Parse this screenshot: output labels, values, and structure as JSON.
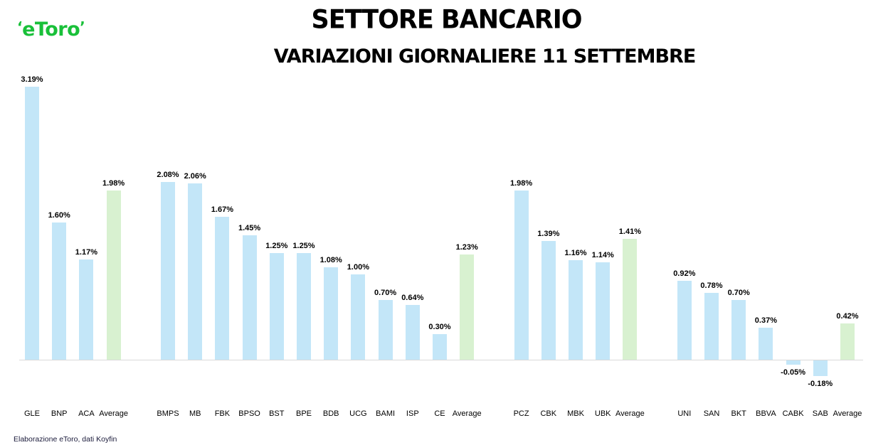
{
  "header": {
    "logo_text": "eToro",
    "title": "SETTORE BANCARIO",
    "subtitle": "VARIAZIONI GIORNALIERE 11 SETTEMBRE"
  },
  "footer": {
    "source": "Elaborazione eToro, dati Koyfin"
  },
  "colors": {
    "bank_bar": "#c3e6f8",
    "average_bar": "#d8f1d0",
    "baseline": "#d9d9d9",
    "logo": "#19c039"
  },
  "chart_data": {
    "type": "bar",
    "title": "SETTORE BANCARIO",
    "subtitle": "VARIAZIONI GIORNALIERE 11 SETTEMBRE",
    "xlabel": "",
    "ylabel": "",
    "grid": false,
    "legend": null,
    "unit": "%",
    "groups": [
      {
        "categories": [
          "GLE",
          "BNP",
          "ACA",
          "Average"
        ],
        "values": [
          3.19,
          1.6,
          1.17,
          1.98
        ]
      },
      {
        "categories": [
          "BMPS",
          "MB",
          "FBK",
          "BPSO",
          "BST",
          "BPE",
          "BDB",
          "UCG",
          "BAMI",
          "ISP",
          "CE",
          "Average"
        ],
        "values": [
          2.08,
          2.06,
          1.67,
          1.45,
          1.25,
          1.25,
          1.08,
          1.0,
          0.7,
          0.64,
          0.3,
          1.23
        ]
      },
      {
        "categories": [
          "PCZ",
          "CBK",
          "MBK",
          "UBK",
          "Average"
        ],
        "values": [
          1.98,
          1.39,
          1.16,
          1.14,
          1.41
        ]
      },
      {
        "categories": [
          "UNI",
          "SAN",
          "BKT",
          "BBVA",
          "CABK",
          "SAB",
          "Average"
        ],
        "values": [
          0.92,
          0.78,
          0.7,
          0.37,
          -0.05,
          -0.18,
          0.42
        ]
      }
    ],
    "categories": [
      "GLE",
      "BNP",
      "ACA",
      "Average",
      "BMPS",
      "MB",
      "FBK",
      "BPSO",
      "BST",
      "BPE",
      "BDB",
      "UCG",
      "BAMI",
      "ISP",
      "CE",
      "Average",
      "PCZ",
      "CBK",
      "MBK",
      "UBK",
      "Average",
      "UNI",
      "SAN",
      "BKT",
      "BBVA",
      "CABK",
      "SAB",
      "Average"
    ],
    "values": [
      3.19,
      1.6,
      1.17,
      1.98,
      2.08,
      2.06,
      1.67,
      1.45,
      1.25,
      1.25,
      1.08,
      1.0,
      0.7,
      0.64,
      0.3,
      1.23,
      1.98,
      1.39,
      1.16,
      1.14,
      1.41,
      0.92,
      0.78,
      0.7,
      0.37,
      -0.05,
      -0.18,
      0.42
    ],
    "labels": [
      "3.19%",
      "1.60%",
      "1.17%",
      "1.98%",
      "2.08%",
      "2.06%",
      "1.67%",
      "1.45%",
      "1.25%",
      "1.25%",
      "1.08%",
      "1.00%",
      "0.70%",
      "0.64%",
      "0.30%",
      "1.23%",
      "1.98%",
      "1.39%",
      "1.16%",
      "1.14%",
      "1.41%",
      "0.92%",
      "0.78%",
      "0.70%",
      "0.37%",
      "-0.05%",
      "-0.18%",
      "0.42%"
    ],
    "ylim": [
      -0.3,
      3.3
    ]
  }
}
